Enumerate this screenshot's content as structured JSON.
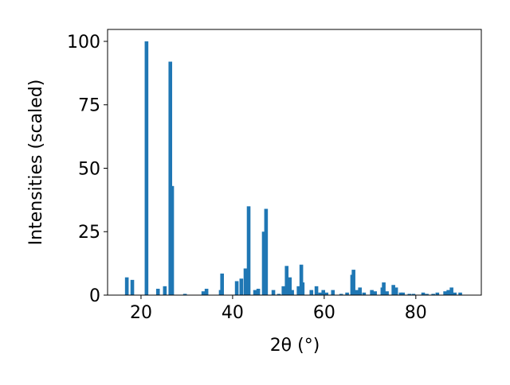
{
  "chart_data": {
    "type": "bar",
    "xlabel": "2θ (°)",
    "ylabel": "Intensities (scaled)",
    "x": [
      16.9,
      18.1,
      21.2,
      23.7,
      25.2,
      26.4,
      26.8,
      29.6,
      33.6,
      34.3,
      37.4,
      37.7,
      40.9,
      41.9,
      42.8,
      43.5,
      44.9,
      45.6,
      46.8,
      47.3,
      48.9,
      50.1,
      51.1,
      51.8,
      52.5,
      53.0,
      54.4,
      55.0,
      55.3,
      57.2,
      58.3,
      59.1,
      59.8,
      60.5,
      61.9,
      63.7,
      65.0,
      66.1,
      66.4,
      67.1,
      67.8,
      68.7,
      70.4,
      71.1,
      72.7,
      73.0,
      73.7,
      75.1,
      75.7,
      76.7,
      77.2,
      78.6,
      79.5,
      81.6,
      82.4,
      83.8,
      84.7,
      86.4,
      87.1,
      87.8,
      88.5,
      89.7
    ],
    "values": [
      7,
      6,
      100,
      2.5,
      3.5,
      92,
      43,
      0.5,
      1.5,
      2.5,
      2,
      8.5,
      5.5,
      6.5,
      10.5,
      35,
      2,
      2.5,
      25,
      34,
      2,
      0.5,
      3.5,
      11.5,
      7,
      2,
      3.5,
      12,
      5,
      2,
      3.5,
      1,
      2,
      1,
      2,
      0.5,
      1,
      8,
      10,
      2,
      3,
      1,
      2,
      1.5,
      3,
      5,
      1.5,
      4,
      3,
      1,
      1,
      0.5,
      0.5,
      1,
      0.5,
      0.5,
      1,
      1.5,
      2,
      3,
      1,
      1
    ],
    "color": "#1f77b4",
    "xlim": [
      12.7,
      94.3
    ],
    "xticks": [
      20,
      40,
      60,
      80
    ],
    "ylim": [
      0,
      104.7
    ],
    "yticks": [
      0,
      25,
      50,
      75,
      100
    ]
  }
}
